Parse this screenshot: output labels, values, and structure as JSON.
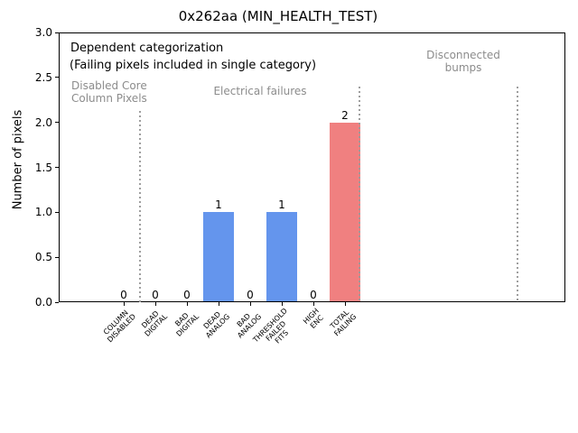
{
  "chart_data": {
    "type": "bar",
    "title": "0x262aa (MIN_HEALTH_TEST)",
    "xlabel": "",
    "ylabel": "Number of pixels",
    "ylim": [
      0,
      3
    ],
    "ytick_values": [
      0,
      0.5,
      1,
      1.5,
      2,
      2.5,
      3
    ],
    "ytick_labels": [
      "0.0",
      "0.5",
      "1.0",
      "1.5",
      "2.0",
      "2.5",
      "3.0"
    ],
    "categories": [
      "COLUMN\nDISABLED",
      "DEAD\nDIGITAL",
      "BAD\nDIGITAL",
      "DEAD\nANALOG",
      "BAD\nANALOG",
      "THRESHOLD\nFAILED\nFITS",
      "HIGH\nENC",
      "TOTAL\nFAILING"
    ],
    "values": [
      0,
      0,
      0,
      1,
      0,
      1,
      0,
      2
    ],
    "value_labels": [
      "0",
      "0",
      "0",
      "1",
      "0",
      "1",
      "0",
      "2"
    ],
    "bar_colors": [
      "#6495ED",
      "#6495ED",
      "#6495ED",
      "#6495ED",
      "#6495ED",
      "#6495ED",
      "#6495ED",
      "#F08080"
    ],
    "grid": false,
    "legend": null,
    "annotations": {
      "note_line1": "Dependent categorization",
      "note_line2": "(Failing pixels included in single category)",
      "region_disabled": "Disabled Core\nColumn Pixels",
      "region_electrical": "Electrical failures",
      "region_disconnected": "Disconnected\nbumps"
    },
    "separators": [
      {
        "slot": 0.5,
        "ymax": 2.13
      },
      {
        "slot": 7.46,
        "ymax": 2.4
      },
      {
        "slot": 12.46,
        "ymax": 2.4
      }
    ],
    "colors": {
      "bar_default": "#6495ED",
      "bar_total": "#F08080",
      "region_text": "#8c8c8c",
      "separator": "#9e9e9e",
      "axis": "#000000"
    }
  }
}
